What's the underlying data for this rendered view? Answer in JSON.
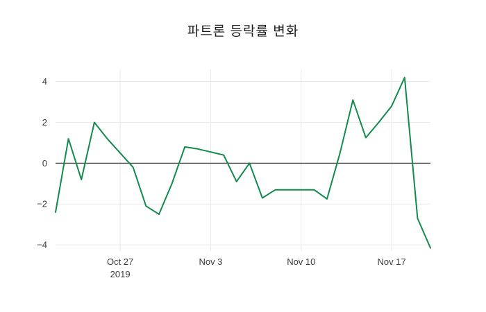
{
  "title": "파트론 등락률 변화",
  "colors": {
    "background": "#ffffff",
    "line": "#118a4c",
    "zero_line": "#444444",
    "grid": "#e9e9e9",
    "title_text": "#1c1c1c",
    "tick_text": "#3b3b3b"
  },
  "chart_data": {
    "type": "line",
    "title": "파트론 등락률 변화",
    "series_name": "파트론 등락률",
    "xlabel": "",
    "ylabel": "",
    "grid": true,
    "legend": "none",
    "ylim": [
      -4.3,
      4.6
    ],
    "yticks": [
      -4,
      -2,
      0,
      2,
      4
    ],
    "x": [
      "2019-10-22",
      "2019-10-23",
      "2019-10-24",
      "2019-10-25",
      "2019-10-26",
      "2019-10-27",
      "2019-10-28",
      "2019-10-29",
      "2019-10-30",
      "2019-10-31",
      "2019-11-01",
      "2019-11-02",
      "2019-11-03",
      "2019-11-04",
      "2019-11-05",
      "2019-11-06",
      "2019-11-07",
      "2019-11-08",
      "2019-11-09",
      "2019-11-10",
      "2019-11-11",
      "2019-11-12",
      "2019-11-13",
      "2019-11-14",
      "2019-11-15",
      "2019-11-16",
      "2019-11-17",
      "2019-11-18",
      "2019-11-19",
      "2019-11-20"
    ],
    "values": [
      -2.4,
      1.2,
      -0.8,
      2.0,
      1.2,
      0.5,
      -0.2,
      -2.1,
      -2.5,
      -1.0,
      0.8,
      0.7,
      0.55,
      0.4,
      -0.9,
      0.0,
      -1.7,
      -1.3,
      -1.3,
      -1.3,
      -1.3,
      -1.75,
      0.5,
      3.1,
      1.25,
      2.0,
      2.8,
      4.2,
      -2.7,
      -4.15
    ],
    "xticks": [
      {
        "index": 5,
        "label": "Oct 27",
        "sublabel": "2019"
      },
      {
        "index": 12,
        "label": "Nov 3",
        "sublabel": ""
      },
      {
        "index": 19,
        "label": "Nov 10",
        "sublabel": ""
      },
      {
        "index": 26,
        "label": "Nov 17",
        "sublabel": ""
      }
    ]
  }
}
